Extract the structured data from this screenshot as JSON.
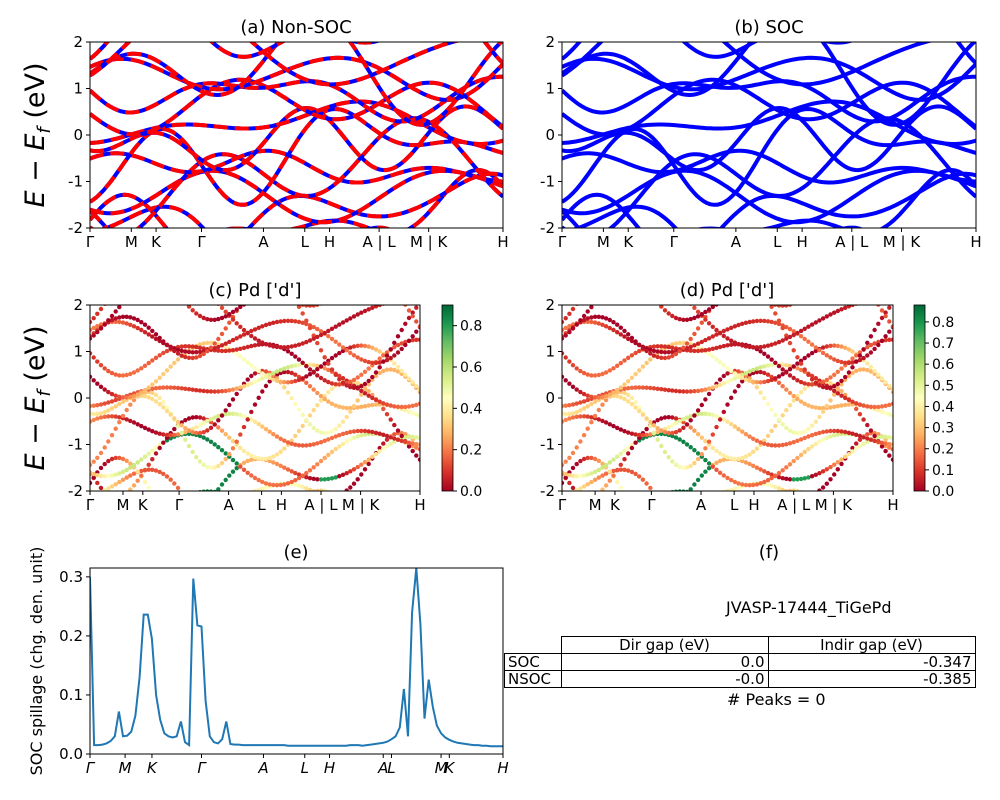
{
  "figure": {
    "ylabel_left": "E − E_f (eV)",
    "ylabel_math": {
      "main": "E − E",
      "sub": "f",
      "unit": " (eV)"
    },
    "kpath_labels": [
      "Γ",
      "M",
      "K",
      "Γ",
      "A",
      "L",
      "H",
      "A | L",
      "M | K",
      "H"
    ],
    "kpath_labels_italic": [
      "Γ",
      "M",
      "K",
      "Γ",
      "A",
      "L",
      "H",
      "A",
      "L",
      "M",
      "K",
      "H"
    ]
  },
  "chart_data": [
    {
      "type": "line",
      "panel": "a",
      "title": "(a) Non-SOC",
      "ylim": [
        -2,
        2
      ],
      "yticks": [
        -2,
        -1,
        0,
        1,
        2
      ],
      "xlabels": [
        "Γ",
        "M",
        "K",
        "Γ",
        "A",
        "L",
        "H",
        "A | L",
        "M | K",
        "H"
      ],
      "series_colors": {
        "up": "#0000ff",
        "down": "#ff0000",
        "style": "dashed overlay"
      }
    },
    {
      "type": "line",
      "panel": "b",
      "title": "(b) SOC",
      "ylim": [
        -2,
        2
      ],
      "yticks": [
        -2,
        -1,
        0,
        1,
        2
      ],
      "xlabels": [
        "Γ",
        "M",
        "K",
        "Γ",
        "A",
        "L",
        "H",
        "A | L",
        "M | K",
        "H"
      ],
      "series_colors": {
        "bands": "#0000ff"
      }
    },
    {
      "type": "scatter",
      "panel": "c",
      "title": "(c)  Pd ['d']",
      "ylim": [
        -2,
        2
      ],
      "yticks": [
        -2,
        -1,
        0,
        1,
        2
      ],
      "xlabels": [
        "Γ",
        "M",
        "K",
        "Γ",
        "A",
        "L",
        "H",
        "A | L",
        "M | K",
        "H"
      ],
      "colorbar": {
        "colormap": "RdYlGn",
        "min": 0.0,
        "max": 0.9,
        "ticks": [
          "0.0",
          "0.2",
          "0.4",
          "0.6",
          "0.8"
        ]
      }
    },
    {
      "type": "scatter",
      "panel": "d",
      "title": "(d) Pd ['d']",
      "ylim": [
        -2,
        2
      ],
      "yticks": [
        -2,
        -1,
        0,
        1,
        2
      ],
      "xlabels": [
        "Γ",
        "M",
        "K",
        "Γ",
        "A",
        "L",
        "H",
        "A | L",
        "M | K",
        "H"
      ],
      "colorbar": {
        "colormap": "RdYlGn",
        "min": 0.0,
        "max": 0.88,
        "ticks": [
          "0.0",
          "0.1",
          "0.2",
          "0.3",
          "0.4",
          "0.5",
          "0.6",
          "0.7",
          "0.8"
        ]
      }
    },
    {
      "type": "line",
      "panel": "e",
      "title": "(e)",
      "ylabel": "SOC spillage (chg. den. unit)",
      "ylim": [
        0,
        0.315
      ],
      "yticks": [
        "0.0",
        "0.1",
        "0.2",
        "0.3"
      ],
      "xlabels": [
        "Γ",
        "M",
        "K",
        "Γ",
        "A",
        "L",
        "H",
        "A",
        "L",
        "M",
        "K",
        "H"
      ],
      "color": "#1f77b4",
      "x": [
        0,
        1,
        2,
        3,
        4,
        5,
        6,
        7,
        8,
        9,
        10,
        11,
        12,
        13,
        14,
        15,
        16,
        17,
        18,
        19,
        20,
        21,
        22,
        23,
        24,
        25,
        26,
        27,
        28,
        29,
        30,
        31,
        32,
        33,
        34,
        35,
        36,
        37,
        38,
        39,
        40,
        41,
        42,
        43,
        44,
        45,
        46,
        47,
        48,
        49,
        50,
        51,
        52,
        53,
        54,
        55,
        56,
        57,
        58,
        59,
        60,
        61,
        62,
        63,
        64,
        65,
        66,
        67,
        68,
        69,
        70,
        71,
        72,
        73,
        74,
        75,
        76,
        77,
        78,
        79,
        80,
        81,
        82,
        83,
        84,
        85,
        86,
        87,
        88,
        89,
        90,
        91,
        92,
        93,
        94,
        95,
        96,
        97,
        98,
        99,
        100
      ],
      "y": [
        0.3,
        0.015,
        0.015,
        0.016,
        0.018,
        0.022,
        0.03,
        0.072,
        0.03,
        0.031,
        0.038,
        0.065,
        0.13,
        0.236,
        0.236,
        0.195,
        0.1,
        0.058,
        0.035,
        0.03,
        0.028,
        0.03,
        0.055,
        0.02,
        0.015,
        0.297,
        0.218,
        0.216,
        0.09,
        0.03,
        0.02,
        0.018,
        0.025,
        0.055,
        0.017,
        0.016,
        0.016,
        0.015,
        0.015,
        0.015,
        0.015,
        0.015,
        0.015,
        0.015,
        0.015,
        0.015,
        0.015,
        0.015,
        0.014,
        0.014,
        0.014,
        0.014,
        0.014,
        0.014,
        0.014,
        0.014,
        0.014,
        0.014,
        0.014,
        0.014,
        0.014,
        0.014,
        0.014,
        0.015,
        0.015,
        0.015,
        0.014,
        0.015,
        0.016,
        0.017,
        0.018,
        0.019,
        0.021,
        0.025,
        0.03,
        0.045,
        0.11,
        0.03,
        0.24,
        0.315,
        0.22,
        0.06,
        0.126,
        0.08,
        0.048,
        0.035,
        0.028,
        0.024,
        0.021,
        0.019,
        0.018,
        0.017,
        0.016,
        0.015,
        0.015,
        0.014,
        0.014,
        0.013,
        0.013,
        0.013,
        0.013
      ],
      "xmax": 100
    }
  ],
  "panel_f": {
    "title": "(f)",
    "jid": "JVASP-17444_TiGePd",
    "table": {
      "headers": [
        "Dir gap (eV)",
        "Indir gap (eV)"
      ],
      "rows": [
        {
          "label": "SOC",
          "dir": "0.0",
          "indir": "-0.347"
        },
        {
          "label": "NSOC",
          "dir": "-0.0",
          "indir": "-0.385"
        }
      ]
    },
    "peaks": "# Peaks = 0"
  }
}
